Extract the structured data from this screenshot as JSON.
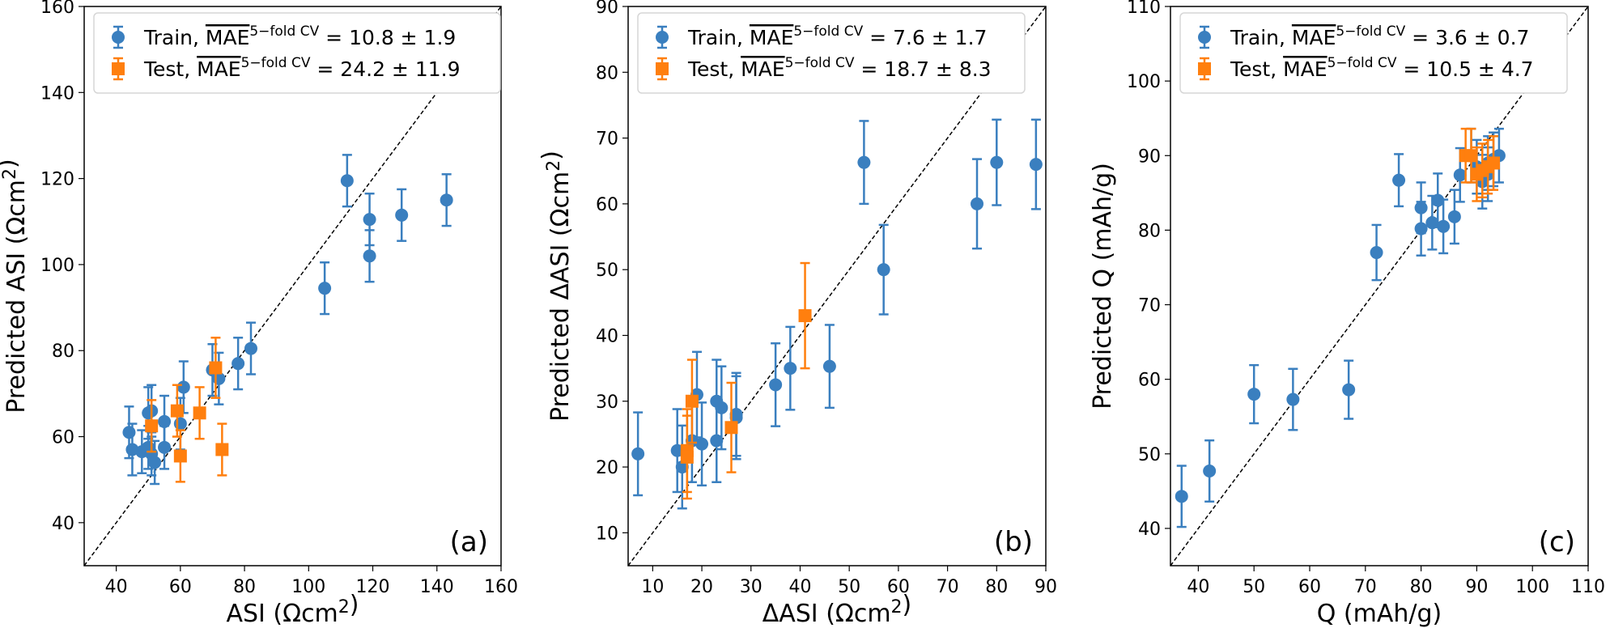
{
  "chart_data": [
    {
      "type": "scatter",
      "panel_label": "(a)",
      "xlabel": "ASI (Ωcm²)",
      "ylabel": "Predicted ASI (Ωcm²)",
      "xlim": [
        30,
        160
      ],
      "ylim": [
        30,
        160
      ],
      "xticks": [
        40,
        60,
        80,
        100,
        120,
        140,
        160
      ],
      "yticks": [
        40,
        60,
        80,
        100,
        120,
        140,
        160
      ],
      "legend_position": "top-left",
      "diagonal": "y = x",
      "series": [
        {
          "name": "Train, MAE 5−fold CV = 10.8 ± 1.9",
          "color": "#3a7fbf",
          "marker": "circle",
          "points": [
            {
              "x": 44,
              "y": 61,
              "err": 6
            },
            {
              "x": 45,
              "y": 57,
              "err": 6
            },
            {
              "x": 48,
              "y": 56.5,
              "err": 5
            },
            {
              "x": 50,
              "y": 65.5,
              "err": 6
            },
            {
              "x": 50,
              "y": 57.5,
              "err": 5
            },
            {
              "x": 51,
              "y": 66,
              "err": 6
            },
            {
              "x": 51,
              "y": 56,
              "err": 5
            },
            {
              "x": 52,
              "y": 54,
              "err": 5
            },
            {
              "x": 55,
              "y": 63.5,
              "err": 6
            },
            {
              "x": 55,
              "y": 57.5,
              "err": 5
            },
            {
              "x": 60,
              "y": 63,
              "err": 6
            },
            {
              "x": 61,
              "y": 71.5,
              "err": 6
            },
            {
              "x": 70,
              "y": 75.5,
              "err": 6
            },
            {
              "x": 72,
              "y": 73.5,
              "err": 6
            },
            {
              "x": 78,
              "y": 77,
              "err": 6
            },
            {
              "x": 82,
              "y": 80.5,
              "err": 6
            },
            {
              "x": 105,
              "y": 94.5,
              "err": 6
            },
            {
              "x": 112,
              "y": 119.5,
              "err": 6
            },
            {
              "x": 119,
              "y": 110.5,
              "err": 6
            },
            {
              "x": 119,
              "y": 102,
              "err": 6
            },
            {
              "x": 129,
              "y": 111.5,
              "err": 6
            },
            {
              "x": 143,
              "y": 115,
              "err": 6
            }
          ]
        },
        {
          "name": "Test, MAE 5−fold CV = 24.2 ± 11.9",
          "color": "#ff7f0e",
          "marker": "square",
          "points": [
            {
              "x": 51,
              "y": 62.5,
              "err": 6
            },
            {
              "x": 59,
              "y": 66,
              "err": 6
            },
            {
              "x": 60,
              "y": 55.5,
              "err": 6
            },
            {
              "x": 66,
              "y": 65.5,
              "err": 6
            },
            {
              "x": 71,
              "y": 76,
              "err": 7
            },
            {
              "x": 73,
              "y": 57,
              "err": 6
            }
          ]
        }
      ]
    },
    {
      "type": "scatter",
      "panel_label": "(b)",
      "xlabel": "ΔASI (Ωcm²)",
      "ylabel": "Predicted ΔASI (Ωcm²)",
      "xlim": [
        5,
        90
      ],
      "ylim": [
        5,
        90
      ],
      "xticks": [
        10,
        20,
        30,
        40,
        50,
        60,
        70,
        80,
        90
      ],
      "yticks": [
        10,
        20,
        30,
        40,
        50,
        60,
        70,
        80,
        90
      ],
      "legend_position": "top-left",
      "diagonal": "y = x",
      "series": [
        {
          "name": "Train, MAE 5−fold CV = 7.6 ± 1.7",
          "color": "#3a7fbf",
          "marker": "circle",
          "points": [
            {
              "x": 7,
              "y": 22,
              "err": 6.3
            },
            {
              "x": 15,
              "y": 22.5,
              "err": 6.3
            },
            {
              "x": 16,
              "y": 20,
              "err": 6.3
            },
            {
              "x": 18,
              "y": 24,
              "err": 6.3
            },
            {
              "x": 19,
              "y": 31,
              "err": 6.5
            },
            {
              "x": 20,
              "y": 23.5,
              "err": 6.3
            },
            {
              "x": 23,
              "y": 30,
              "err": 6.3
            },
            {
              "x": 23,
              "y": 24,
              "err": 6.3
            },
            {
              "x": 24,
              "y": 29,
              "err": 6.3
            },
            {
              "x": 27,
              "y": 28,
              "err": 6.3
            },
            {
              "x": 27,
              "y": 27.5,
              "err": 6.3
            },
            {
              "x": 35,
              "y": 32.5,
              "err": 6.3
            },
            {
              "x": 38,
              "y": 35,
              "err": 6.3
            },
            {
              "x": 46,
              "y": 35.3,
              "err": 6.3
            },
            {
              "x": 53,
              "y": 66.3,
              "err": 6.3
            },
            {
              "x": 57,
              "y": 50,
              "err": 6.8
            },
            {
              "x": 76,
              "y": 60,
              "err": 6.8
            },
            {
              "x": 80,
              "y": 66.3,
              "err": 6.5
            },
            {
              "x": 88,
              "y": 66,
              "err": 6.8
            }
          ]
        },
        {
          "name": "Test, MAE 5−fold CV = 18.7 ± 8.3",
          "color": "#ff7f0e",
          "marker": "square",
          "points": [
            {
              "x": 17,
              "y": 22.5,
              "err": 6.3
            },
            {
              "x": 17,
              "y": 21.5,
              "err": 6.3
            },
            {
              "x": 18,
              "y": 30,
              "err": 6.3
            },
            {
              "x": 26,
              "y": 26,
              "err": 6.8
            },
            {
              "x": 41,
              "y": 43,
              "err": 8
            }
          ]
        }
      ]
    },
    {
      "type": "scatter",
      "panel_label": "(c)",
      "xlabel": "Q (mAh/g)",
      "ylabel": "Predicted Q (mAh/g)",
      "xlim": [
        35,
        110
      ],
      "ylim": [
        35,
        110
      ],
      "xticks": [
        40,
        50,
        60,
        70,
        80,
        90,
        100,
        110
      ],
      "yticks": [
        40,
        50,
        60,
        70,
        80,
        90,
        100,
        110
      ],
      "legend_position": "top-left",
      "diagonal": "y = x",
      "series": [
        {
          "name": "Train, MAE 5−fold CV = 3.6 ± 0.7",
          "color": "#3a7fbf",
          "marker": "circle",
          "points": [
            {
              "x": 37,
              "y": 44.3,
              "err": 4.1
            },
            {
              "x": 42,
              "y": 47.7,
              "err": 4.1
            },
            {
              "x": 50,
              "y": 58,
              "err": 3.9
            },
            {
              "x": 57,
              "y": 57.3,
              "err": 4.1
            },
            {
              "x": 67,
              "y": 58.6,
              "err": 3.9
            },
            {
              "x": 72,
              "y": 77,
              "err": 3.7
            },
            {
              "x": 76,
              "y": 86.7,
              "err": 3.5
            },
            {
              "x": 80,
              "y": 83,
              "err": 3.4
            },
            {
              "x": 80,
              "y": 80.2,
              "err": 3.6
            },
            {
              "x": 82,
              "y": 81,
              "err": 3.6
            },
            {
              "x": 83,
              "y": 84,
              "err": 3.6
            },
            {
              "x": 84,
              "y": 80.5,
              "err": 3.6
            },
            {
              "x": 86,
              "y": 81.8,
              "err": 3.6
            },
            {
              "x": 87,
              "y": 87.4,
              "err": 3.6
            },
            {
              "x": 89,
              "y": 90,
              "err": 3.6
            },
            {
              "x": 90,
              "y": 88.5,
              "err": 3.6
            },
            {
              "x": 91,
              "y": 86.5,
              "err": 3.6
            },
            {
              "x": 92,
              "y": 87.5,
              "err": 3.6
            },
            {
              "x": 92,
              "y": 89,
              "err": 3.6
            },
            {
              "x": 93,
              "y": 89.5,
              "err": 3.6
            },
            {
              "x": 94,
              "y": 90,
              "err": 3.6
            }
          ]
        },
        {
          "name": "Test, MAE 5−fold CV = 10.5 ± 4.7",
          "color": "#ff7f0e",
          "marker": "square",
          "points": [
            {
              "x": 88,
              "y": 90,
              "err": 3.6
            },
            {
              "x": 89,
              "y": 90,
              "err": 3.6
            },
            {
              "x": 90,
              "y": 87.5,
              "err": 3.6
            },
            {
              "x": 91,
              "y": 88,
              "err": 3.6
            },
            {
              "x": 92,
              "y": 88.5,
              "err": 3.6
            },
            {
              "x": 93,
              "y": 89,
              "err": 3.6
            }
          ]
        }
      ]
    }
  ]
}
